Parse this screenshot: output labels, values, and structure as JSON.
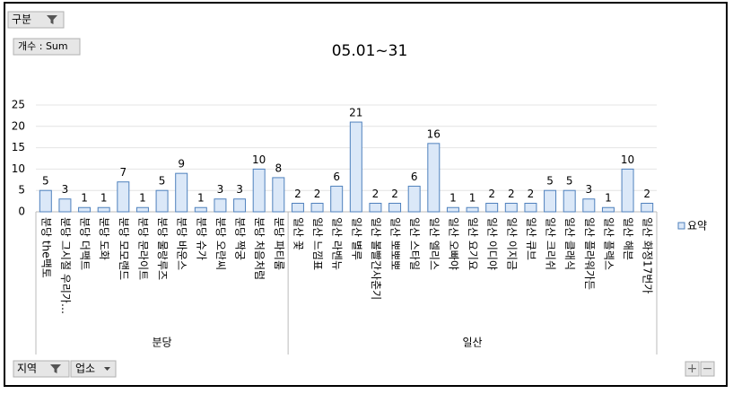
{
  "chart_data": {
    "type": "bar",
    "title": "05.01~31",
    "series_name": "요약",
    "color": "#dbe8f8",
    "edge": "#4f81bd",
    "ylim": [
      0,
      25
    ],
    "yticks": [
      0,
      5,
      10,
      15,
      20,
      25
    ],
    "grid": true,
    "groups": [
      {
        "label": "분당",
        "categories": [
          "분당 the팩토",
          "분당 그시절 우리가…",
          "분당 더팩트",
          "분당 도화",
          "분당 모모랜드",
          "분당 문라이트",
          "분당 물랑루즈",
          "분당 바운스",
          "분당 슈가",
          "분당 오란씨",
          "분당 짝궁",
          "분당 처음처럼",
          "분당 파티룸"
        ],
        "values": [
          5,
          3,
          1,
          1,
          7,
          1,
          5,
          9,
          1,
          3,
          3,
          10,
          8
        ]
      },
      {
        "label": "일산",
        "categories": [
          "일산 꽃",
          "일산 느낌표",
          "일산 라벤뉴",
          "일산 별루",
          "일산 볼빨간사춘기",
          "일산 뽀뽀뽀",
          "일산 스타일",
          "일산 엘리스",
          "일산 오빠야",
          "일산 요기요",
          "일산 이디야",
          "일산 이지금",
          "일산 큐브",
          "일산 크리쉬",
          "일산 클래식",
          "일산 플라워가든",
          "일산 플렉스",
          "일산 해븐",
          "일산 화정17번가"
        ],
        "values": [
          2,
          2,
          6,
          21,
          2,
          2,
          6,
          16,
          1,
          1,
          2,
          2,
          2,
          5,
          5,
          3,
          1,
          10,
          2
        ]
      }
    ]
  },
  "controls": {
    "filter": "구분",
    "value_field": "개수 : Sum",
    "axis_field_1": "지역",
    "axis_field_2": "업소",
    "zoom_in": "+",
    "zoom_out": "−"
  }
}
